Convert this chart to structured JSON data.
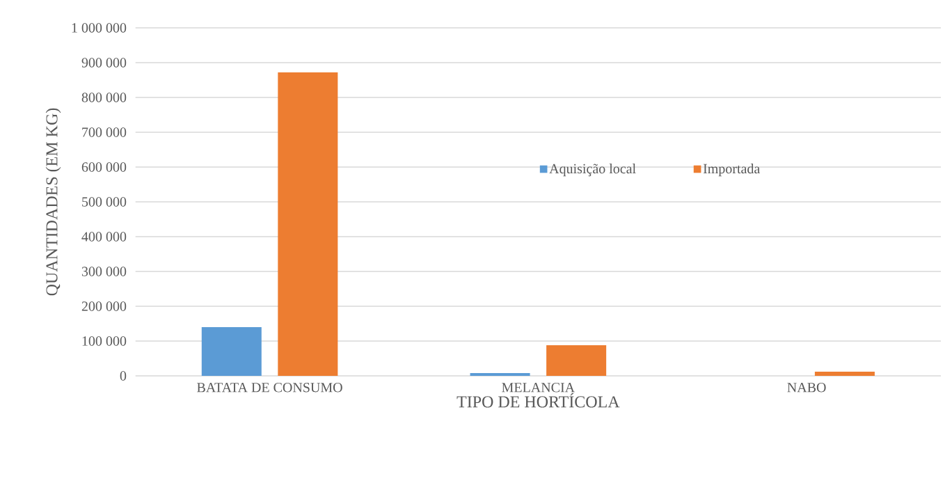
{
  "chart_data": {
    "type": "bar",
    "xlabel": "TIPO DE HORTÍCOLA",
    "ylabel": "QUANTIDADES (EM KG)",
    "categories": [
      "BATATA DE CONSUMO",
      "MELANCIA",
      "NABO"
    ],
    "series": [
      {
        "name": "Aquisição local",
        "color": "#5b9bd5",
        "values": [
          140000,
          8000,
          0
        ]
      },
      {
        "name": "Importada",
        "color": "#ed7d31",
        "values": [
          872000,
          88000,
          12000
        ]
      }
    ],
    "ylim": [
      0,
      1000000
    ],
    "yticks": [
      {
        "value": 0,
        "label": "0"
      },
      {
        "value": 100000,
        "label": "100 000"
      },
      {
        "value": 200000,
        "label": "200 000"
      },
      {
        "value": 300000,
        "label": "300 000"
      },
      {
        "value": 400000,
        "label": "400 000"
      },
      {
        "value": 500000,
        "label": "500 000"
      },
      {
        "value": 600000,
        "label": "600 000"
      },
      {
        "value": 700000,
        "label": "700 000"
      },
      {
        "value": 800000,
        "label": "800 000"
      },
      {
        "value": 900000,
        "label": "900 000"
      },
      {
        "value": 1000000,
        "label": "1 000 000"
      }
    ],
    "grid": "y",
    "legend": "right"
  }
}
